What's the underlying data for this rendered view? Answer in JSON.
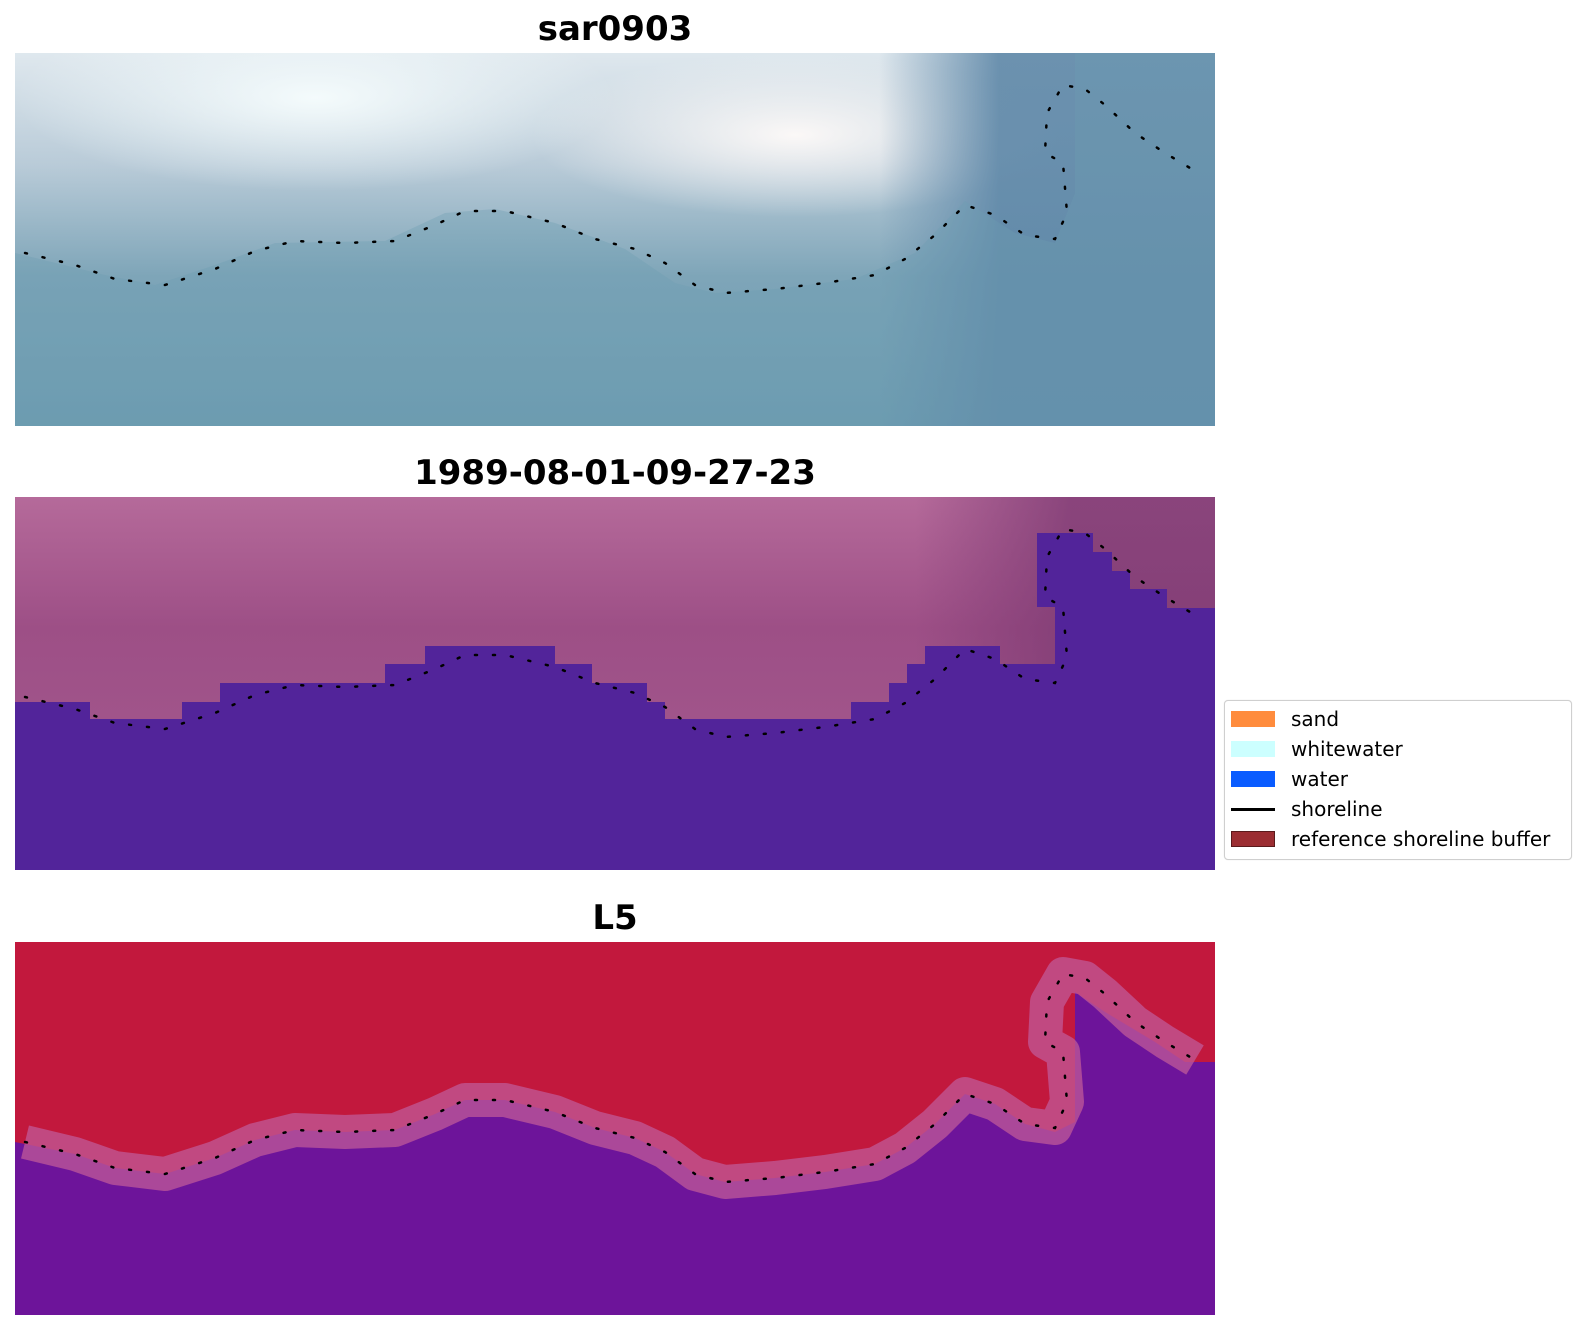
{
  "panels": [
    {
      "title": "sar0903"
    },
    {
      "title": "1989-08-01-09-27-23"
    },
    {
      "title": "L5"
    }
  ],
  "legend": {
    "items": [
      {
        "label": "sand",
        "color": "#ff8c3d",
        "kind": "patch"
      },
      {
        "label": "whitewater",
        "color": "#ccffff",
        "kind": "patch"
      },
      {
        "label": "water",
        "color": "#0a5cff",
        "kind": "patch"
      },
      {
        "label": "shoreline",
        "color": "#000000",
        "kind": "line"
      },
      {
        "label": "reference shoreline buffer",
        "color": "#9b2d32",
        "kind": "patch"
      }
    ]
  }
}
